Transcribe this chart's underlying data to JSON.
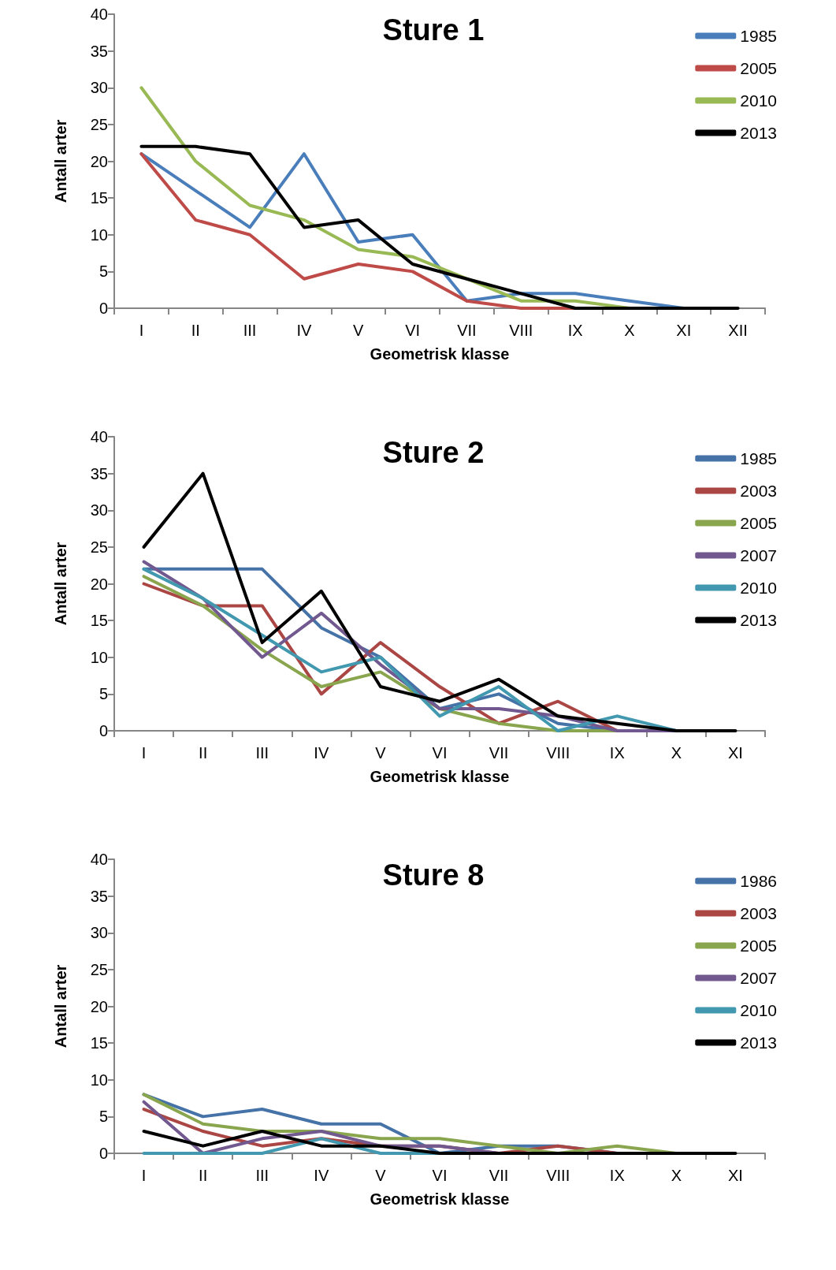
{
  "chart_data": [
    {
      "type": "line",
      "title": "Sture 1",
      "xlabel": "Geometrisk klasse",
      "ylabel": "Antall arter",
      "categories": [
        "I",
        "II",
        "III",
        "IV",
        "V",
        "VI",
        "VII",
        "VIII",
        "IX",
        "X",
        "XI",
        "XII"
      ],
      "ylim": [
        0,
        40
      ],
      "yticks": [
        0,
        5,
        10,
        15,
        20,
        25,
        30,
        35,
        40
      ],
      "grid": false,
      "legend": "top right",
      "marker": "none",
      "line_style": "solid",
      "series": [
        {
          "name": "1985",
          "color": "#4a7ebb",
          "values": [
            21,
            16,
            11,
            21,
            9,
            10,
            1,
            2,
            2,
            1,
            0,
            null
          ]
        },
        {
          "name": "2005",
          "color": "#be4b48",
          "values": [
            21,
            12,
            10,
            4,
            6,
            5,
            1,
            0,
            0,
            null,
            null,
            null
          ]
        },
        {
          "name": "2010",
          "color": "#98b954",
          "values": [
            30,
            20,
            14,
            12,
            8,
            7,
            4,
            1,
            1,
            0,
            null,
            null
          ]
        },
        {
          "name": "2013",
          "color": "#000000",
          "values": [
            22,
            22,
            21,
            11,
            12,
            6,
            4,
            2,
            0,
            0,
            0,
            0
          ]
        }
      ]
    },
    {
      "type": "line",
      "title": "Sture 2",
      "xlabel": "Geometrisk klasse",
      "ylabel": "Antall arter",
      "categories": [
        "I",
        "II",
        "III",
        "IV",
        "V",
        "VI",
        "VII",
        "VIII",
        "IX",
        "X",
        "XI"
      ],
      "ylim": [
        0,
        40
      ],
      "yticks": [
        0,
        5,
        10,
        15,
        20,
        25,
        30,
        35,
        40
      ],
      "grid": false,
      "legend": "top right",
      "marker": "none",
      "line_style": "solid",
      "series": [
        {
          "name": "1985",
          "color": "#4572a7",
          "values": [
            22,
            22,
            22,
            14,
            10,
            3,
            5,
            1,
            0,
            0,
            null
          ]
        },
        {
          "name": "2003",
          "color": "#aa4643",
          "values": [
            20,
            17,
            17,
            5,
            12,
            6,
            1,
            4,
            0,
            0,
            null
          ]
        },
        {
          "name": "2005",
          "color": "#89a54e",
          "values": [
            21,
            17,
            11,
            6,
            8,
            3,
            1,
            0,
            0,
            0,
            null
          ]
        },
        {
          "name": "2007",
          "color": "#71588f",
          "values": [
            23,
            18,
            10,
            16,
            9,
            3,
            3,
            2,
            0,
            0,
            null
          ]
        },
        {
          "name": "2010",
          "color": "#4198af",
          "values": [
            22,
            18,
            13,
            8,
            10,
            2,
            6,
            0,
            2,
            0,
            null
          ]
        },
        {
          "name": "2013",
          "color": "#000000",
          "values": [
            25,
            35,
            12,
            19,
            6,
            4,
            7,
            2,
            1,
            0,
            0
          ]
        }
      ]
    },
    {
      "type": "line",
      "title": "Sture 8",
      "xlabel": "Geometrisk klasse",
      "ylabel": "Antall arter",
      "categories": [
        "I",
        "II",
        "III",
        "IV",
        "V",
        "VI",
        "VII",
        "VIII",
        "IX",
        "X",
        "XI"
      ],
      "ylim": [
        0,
        40
      ],
      "yticks": [
        0,
        5,
        10,
        15,
        20,
        25,
        30,
        35,
        40
      ],
      "grid": false,
      "legend": "top right",
      "marker": "none",
      "line_style": "solid",
      "series": [
        {
          "name": "1986",
          "color": "#4572a7",
          "values": [
            8,
            5,
            6,
            4,
            4,
            0,
            1,
            1,
            0,
            0,
            null
          ]
        },
        {
          "name": "2003",
          "color": "#aa4643",
          "values": [
            6,
            3,
            1,
            2,
            1,
            1,
            0,
            1,
            0,
            0,
            null
          ]
        },
        {
          "name": "2005",
          "color": "#89a54e",
          "values": [
            8,
            4,
            3,
            3,
            2,
            2,
            1,
            0,
            1,
            0,
            null
          ]
        },
        {
          "name": "2007",
          "color": "#71588f",
          "values": [
            7,
            0,
            2,
            3,
            1,
            1,
            0,
            0,
            0,
            0,
            null
          ]
        },
        {
          "name": "2010",
          "color": "#4198af",
          "values": [
            0,
            0,
            0,
            2,
            0,
            0,
            0,
            0,
            null,
            null,
            null
          ]
        },
        {
          "name": "2013",
          "color": "#000000",
          "values": [
            3,
            1,
            3,
            1,
            1,
            0,
            0,
            0,
            0,
            0,
            0
          ]
        }
      ]
    }
  ]
}
